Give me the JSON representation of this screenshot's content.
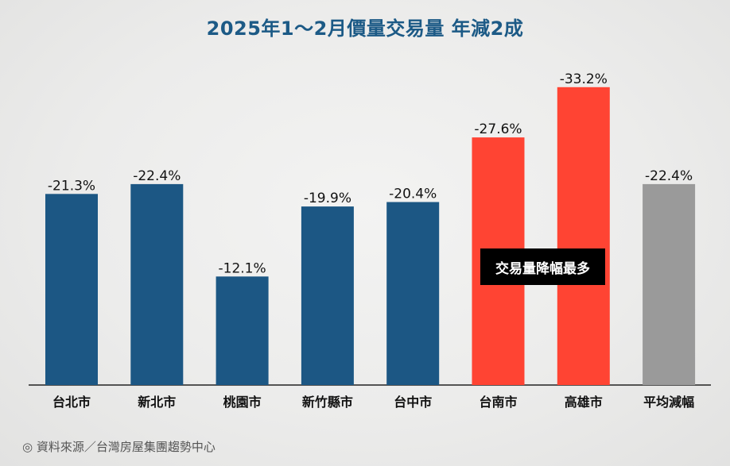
{
  "chart_data": {
    "type": "bar",
    "title": "2025年1～2月價量交易量 年減2成",
    "categories": [
      "台北市",
      "新北市",
      "桃園市",
      "新竹縣市",
      "台中市",
      "台南市",
      "高雄市",
      "平均減幅"
    ],
    "values": [
      -21.3,
      -22.4,
      -12.1,
      -19.9,
      -20.4,
      -27.6,
      -33.2,
      -22.4
    ],
    "value_labels": [
      "-21.3%",
      "-22.4%",
      "-12.1%",
      "-19.9%",
      "-20.4%",
      "-27.6%",
      "-33.2%",
      "-22.4%"
    ],
    "colors": [
      "#1c5784",
      "#1c5784",
      "#1c5784",
      "#1c5784",
      "#1c5784",
      "#ff4433",
      "#ff4433",
      "#9a9a9a"
    ],
    "bar_direction": "magnitude drawn upward from baseline",
    "annotation": "交易量降幅最多",
    "source": "◎ 資料來源／台灣房屋集團趨勢中心"
  }
}
